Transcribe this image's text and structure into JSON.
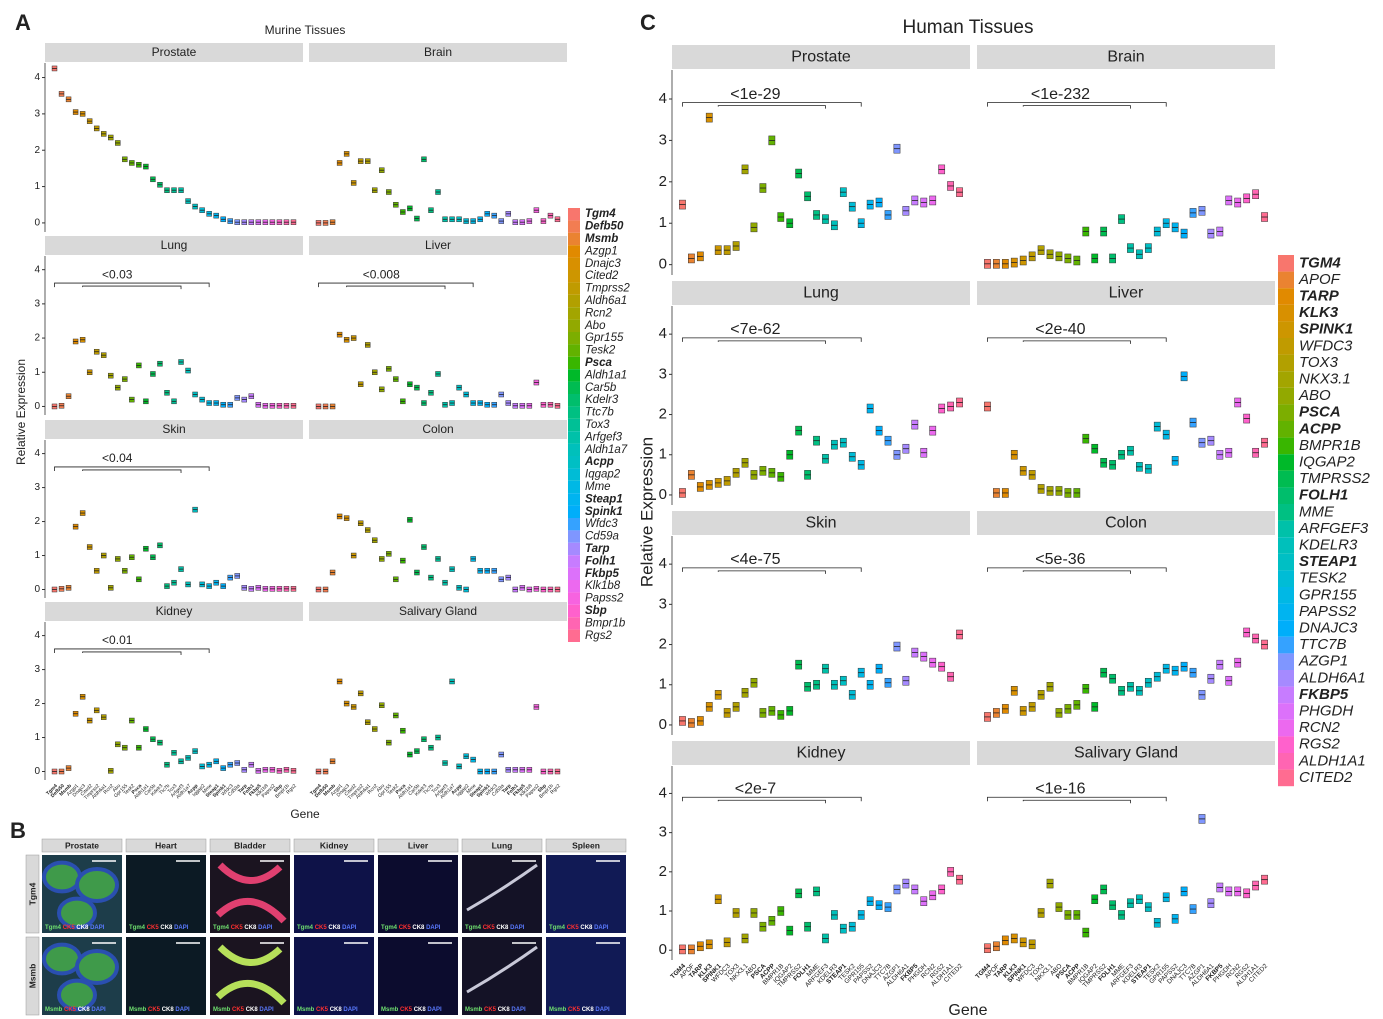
{
  "panel_labels": [
    "A",
    "B",
    "C"
  ],
  "chart_data": [
    {
      "type": "box",
      "title": "Murine Tissues",
      "y_label": "Relative Expression",
      "x_label": "Gene",
      "genes": [
        "Tgm4",
        "Defb50",
        "Msmb",
        "Azgp1",
        "Dnajc3",
        "Cited2",
        "Tmprss2",
        "Aldh6a1",
        "Rcn2",
        "Abo",
        "Gpr155",
        "Tesk2",
        "Psca",
        "Aldh1a1",
        "Car5b",
        "Kdelr3",
        "Ttc7b",
        "Tox3",
        "Arfgef3",
        "Aldh1a7",
        "Acpp",
        "Iqgap2",
        "Mme",
        "Steap1",
        "Spink1",
        "Wfdc3",
        "Cd59a",
        "Tarp",
        "Folh1",
        "Fkbp5",
        "Klk1b8",
        "Papss2",
        "Sbp",
        "Bmpr1b",
        "Rgs2"
      ],
      "colors": [
        "#F8766D",
        "#F27D52",
        "#EA8331",
        "#E18A00",
        "#D89000",
        "#CD9600",
        "#C09B00",
        "#B2A000",
        "#A3A500",
        "#92A900",
        "#7CAE00",
        "#62B200",
        "#39B600",
        "#00B929",
        "#00BC51",
        "#00BE6C",
        "#00C082",
        "#00C096",
        "#00C1A9",
        "#00C0BB",
        "#00BFC4",
        "#00BCD6",
        "#00B8E5",
        "#00B4F0",
        "#00AEFA",
        "#35A2FF",
        "#7F96FF",
        "#A58AFF",
        "#C77CFF",
        "#DC71FA",
        "#EC69EF",
        "#F763E0",
        "#FF61CC",
        "#FF65B2",
        "#FF6C91"
      ],
      "highlight": [
        0,
        1,
        2,
        12,
        20,
        23,
        24,
        27,
        28,
        29,
        32
      ],
      "ylim": [
        -0.25,
        4.4
      ],
      "yticks": [
        0,
        1,
        2,
        3,
        4
      ],
      "facets": [
        {
          "name": "Prostate",
          "values": [
            4.25,
            3.55,
            3.4,
            3.05,
            3.0,
            2.8,
            2.6,
            2.45,
            2.35,
            2.2,
            1.75,
            1.65,
            1.6,
            1.55,
            1.2,
            1.05,
            0.9,
            0.9,
            0.9,
            0.6,
            0.45,
            0.35,
            0.25,
            0.2,
            0.1,
            0.05,
            0.02,
            0.02,
            0.02,
            0.02,
            0.02,
            0.02,
            0.02,
            0.02,
            0.02
          ]
        },
        {
          "name": "Brain",
          "values": [
            0,
            0,
            0.02,
            1.65,
            1.9,
            1.1,
            1.7,
            1.7,
            0.9,
            1.45,
            0.85,
            0.5,
            0.3,
            0.4,
            0.12,
            1.75,
            0.35,
            0.85,
            0.1,
            0.1,
            0.1,
            0.05,
            0.05,
            0.1,
            0.25,
            0.2,
            0.05,
            0.25,
            0.02,
            0.02,
            0.05,
            0.35,
            0.05,
            0.2,
            0.1
          ]
        },
        {
          "name": "Lung",
          "annotation": "<0.03",
          "values": [
            0,
            0.02,
            0.3,
            1.9,
            1.95,
            1.0,
            1.6,
            1.5,
            0.9,
            0.55,
            0.8,
            0.2,
            1.2,
            0.15,
            0.95,
            1.25,
            0.4,
            0.15,
            1.3,
            1.05,
            0.35,
            0.2,
            0.1,
            0.1,
            0.05,
            0.05,
            0.25,
            0.2,
            0.3,
            0.05,
            0.02,
            0.02,
            0.02,
            0.02,
            0.02
          ]
        },
        {
          "name": "Liver",
          "annotation": "<0.008",
          "values": [
            0,
            0,
            0,
            2.1,
            1.95,
            2.0,
            0.65,
            1.8,
            1.0,
            0.5,
            1.1,
            0.8,
            0.15,
            0.65,
            0.55,
            0.1,
            0.4,
            0.95,
            0.05,
            0.1,
            0.55,
            0.35,
            0.1,
            0.1,
            0.05,
            0.05,
            0.35,
            0.1,
            0.02,
            0.02,
            0.02,
            0.7,
            0.05,
            0.05,
            0.02
          ]
        },
        {
          "name": "Skin",
          "annotation": "<0.04",
          "values": [
            0,
            0.02,
            0.05,
            1.85,
            2.25,
            1.25,
            0.55,
            1.0,
            0.05,
            0.9,
            0.55,
            0.95,
            0.3,
            1.2,
            0.95,
            1.3,
            0.1,
            0.2,
            0.6,
            0.15,
            2.35,
            0.15,
            0.1,
            0.2,
            0.1,
            0.35,
            0.4,
            0.05,
            0.02,
            0.05,
            0.02,
            0.02,
            0.02,
            0.02,
            0.02
          ]
        },
        {
          "name": "Colon",
          "values": [
            0,
            0,
            0.5,
            2.15,
            2.1,
            1.0,
            1.95,
            1.75,
            1.45,
            0.9,
            1.05,
            0.3,
            0.85,
            2.05,
            0.5,
            1.25,
            0.35,
            0.9,
            0.2,
            0.6,
            0.05,
            0,
            0.9,
            0.55,
            0.55,
            0.55,
            0.3,
            0.35,
            0,
            0.05,
            0,
            0.02,
            0,
            0,
            0
          ]
        },
        {
          "name": "Kidney",
          "annotation": "<0.01",
          "values": [
            0,
            0,
            0.1,
            1.7,
            2.2,
            1.5,
            1.8,
            1.6,
            0.02,
            0.8,
            0.7,
            1.5,
            0.7,
            1.25,
            0.95,
            0.85,
            0.2,
            0.55,
            0.3,
            0.4,
            0.6,
            0.15,
            0.2,
            0.3,
            0.1,
            0.2,
            0.25,
            0.05,
            0.2,
            0.02,
            0.05,
            0.05,
            0.02,
            0.05,
            0.02
          ]
        },
        {
          "name": "Salivary Gland",
          "values": [
            0,
            0,
            0.3,
            2.65,
            2.0,
            1.9,
            2.3,
            1.45,
            1.25,
            1.95,
            0.85,
            1.65,
            1.2,
            0.5,
            0.6,
            0.95,
            0.7,
            1.0,
            0.25,
            2.65,
            0.15,
            0.45,
            0.35,
            0,
            0,
            0,
            0.5,
            0.05,
            0.05,
            0.05,
            0.05,
            1.9,
            0,
            0,
            0
          ]
        }
      ]
    },
    {
      "type": "box",
      "title": "Human Tissues",
      "y_label": "Relative Expression",
      "x_label": "Gene",
      "genes": [
        "TGM4",
        "APOF",
        "TARP",
        "KLK3",
        "SPINK1",
        "WFDC3",
        "TOX3",
        "NKX3.1",
        "ABO",
        "PSCA",
        "ACPP",
        "BMPR1B",
        "IQGAP2",
        "TMPRSS2",
        "FOLH1",
        "MME",
        "ARFGEF3",
        "KDELR3",
        "STEAP1",
        "TESK2",
        "GPR155",
        "PAPSS2",
        "DNAJC3",
        "TTC7B",
        "AZGP1",
        "ALDH6A1",
        "FKBP5",
        "PHGDH",
        "RCN2",
        "RGS2",
        "ALDH1A1",
        "CITED2"
      ],
      "colors": [
        "#F8766D",
        "#EA8331",
        "#E18A00",
        "#D89000",
        "#CD9600",
        "#C09B00",
        "#B2A000",
        "#A3A500",
        "#92A900",
        "#7CAE00",
        "#62B200",
        "#39B600",
        "#00B929",
        "#00BC51",
        "#00BE6C",
        "#00C082",
        "#00C1A9",
        "#00C0BB",
        "#00BFC4",
        "#00BCD6",
        "#00B8E5",
        "#00B4F0",
        "#00AEFA",
        "#35A2FF",
        "#7F96FF",
        "#A58AFF",
        "#C77CFF",
        "#DC71FA",
        "#EC69EF",
        "#FF61CC",
        "#FF65B2",
        "#FF6C91"
      ],
      "highlight": [
        0,
        2,
        3,
        4,
        9,
        10,
        14,
        18,
        26
      ],
      "ylim": [
        -0.25,
        4.7
      ],
      "yticks": [
        0,
        1,
        2,
        3,
        4
      ],
      "facets": [
        {
          "name": "Prostate",
          "annotation": "<1e-29",
          "values": [
            1.45,
            0.15,
            0.2,
            3.55,
            0.35,
            0.35,
            0.45,
            2.3,
            0.9,
            1.85,
            3.0,
            1.15,
            1.0,
            2.2,
            1.65,
            1.2,
            1.1,
            0.95,
            1.75,
            1.4,
            1.0,
            1.45,
            1.5,
            1.2,
            2.8,
            1.3,
            1.55,
            1.5,
            1.55,
            2.3,
            1.9,
            1.75
          ]
        },
        {
          "name": "Brain",
          "annotation": "<1e-232",
          "values": [
            0.02,
            0.02,
            0.02,
            0.05,
            0.1,
            0.2,
            0.35,
            0.25,
            0.2,
            0.15,
            0.1,
            0.8,
            0.15,
            0.8,
            0.15,
            1.1,
            0.4,
            0.25,
            0.4,
            0.8,
            1.0,
            0.9,
            0.75,
            1.25,
            1.3,
            0.75,
            0.8,
            1.55,
            1.5,
            1.6,
            1.7,
            1.15
          ]
        },
        {
          "name": "Lung",
          "annotation": "<7e-62",
          "values": [
            0.05,
            0.5,
            0.2,
            0.25,
            0.3,
            0.35,
            0.55,
            0.8,
            0.5,
            0.6,
            0.55,
            0.45,
            1.0,
            1.6,
            0.5,
            1.35,
            0.9,
            1.25,
            1.3,
            0.95,
            0.75,
            2.15,
            1.6,
            1.35,
            1.0,
            1.15,
            1.75,
            1.05,
            1.6,
            2.15,
            2.2,
            2.3
          ]
        },
        {
          "name": "Liver",
          "annotation": "<2e-40",
          "values": [
            2.2,
            0.05,
            0.05,
            1.0,
            0.6,
            0.5,
            0.15,
            0.1,
            0.1,
            0.05,
            0.05,
            1.4,
            1.15,
            0.8,
            0.75,
            1.0,
            1.1,
            0.7,
            0.65,
            1.7,
            1.5,
            0.85,
            2.95,
            1.8,
            1.3,
            1.35,
            1.0,
            1.05,
            2.3,
            1.9,
            1.05,
            1.3
          ]
        },
        {
          "name": "Skin",
          "annotation": "<4e-75",
          "values": [
            0.1,
            0.05,
            0.1,
            0.45,
            0.75,
            0.3,
            0.45,
            0.8,
            1.05,
            0.3,
            0.35,
            0.25,
            0.35,
            1.5,
            0.95,
            1.0,
            1.4,
            1.0,
            1.1,
            0.75,
            1.3,
            1.0,
            1.4,
            1.05,
            1.95,
            1.1,
            1.8,
            1.7,
            1.55,
            1.45,
            1.2,
            2.25
          ]
        },
        {
          "name": "Colon",
          "annotation": "<5e-36",
          "values": [
            0.2,
            0.3,
            0.4,
            0.85,
            0.35,
            0.45,
            0.75,
            0.95,
            0.3,
            0.4,
            0.5,
            0.9,
            0.45,
            1.3,
            1.15,
            0.85,
            0.95,
            0.85,
            1.05,
            1.2,
            1.4,
            1.35,
            1.45,
            1.3,
            0.75,
            1.15,
            1.5,
            1.1,
            1.55,
            2.3,
            2.15,
            2.0
          ]
        },
        {
          "name": "Kidney",
          "annotation": "<2e-7",
          "values": [
            0.02,
            0.02,
            0.1,
            0.15,
            1.3,
            0.2,
            0.95,
            0.3,
            0.95,
            0.6,
            0.75,
            1.0,
            0.5,
            1.45,
            0.6,
            1.5,
            0.3,
            0.9,
            0.55,
            0.6,
            0.9,
            1.25,
            1.15,
            1.1,
            1.55,
            1.7,
            1.55,
            1.25,
            1.4,
            1.55,
            2.0,
            1.8
          ]
        },
        {
          "name": "Salivary Gland",
          "annotation": "<1e-16",
          "values": [
            0.05,
            0.1,
            0.25,
            0.3,
            0.2,
            0.15,
            0.95,
            1.7,
            1.1,
            0.9,
            0.9,
            0.45,
            1.3,
            1.55,
            1.15,
            0.9,
            1.2,
            1.3,
            1.1,
            0.7,
            1.35,
            0.8,
            1.5,
            1.05,
            3.35,
            1.2,
            1.6,
            1.5,
            1.5,
            1.45,
            1.65,
            1.8
          ]
        }
      ]
    }
  ],
  "panel_b": {
    "columns": [
      "Prostate",
      "Heart",
      "Bladder",
      "Kidney",
      "Liver",
      "Lung",
      "Spleen"
    ],
    "rows": [
      "Tgm4",
      "Msmb"
    ],
    "stains": [
      "CK5",
      "CK8",
      "DAPI"
    ]
  }
}
